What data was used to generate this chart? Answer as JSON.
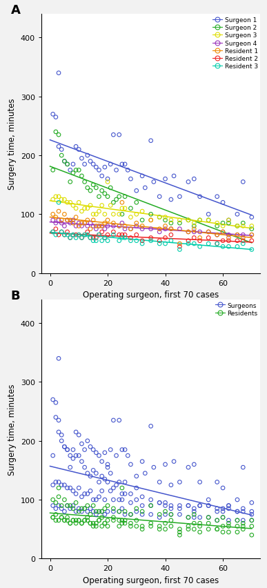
{
  "panel_A_label": "A",
  "panel_B_label": "B",
  "xlabel": "Operating surgeon, first 70 cases",
  "ylabel": "Surgery time, minutes",
  "ylim": [
    0,
    440
  ],
  "xlim": [
    -3,
    73
  ],
  "yticks": [
    0,
    100,
    200,
    300,
    400
  ],
  "xticks": [
    0,
    20,
    40,
    60
  ],
  "figsize": [
    3.87,
    8.53
  ],
  "dpi": 100,
  "bg_color": "#f2f2f2",
  "plot_bg": "#ffffff",
  "series": [
    {
      "name": "Surgeon 1",
      "color": "#4455cc",
      "x_data": [
        1,
        2,
        3,
        3,
        4,
        5,
        6,
        7,
        8,
        9,
        10,
        11,
        12,
        13,
        14,
        15,
        16,
        17,
        18,
        19,
        20,
        21,
        22,
        23,
        24,
        25,
        26,
        27,
        28,
        30,
        32,
        33,
        35,
        36,
        38,
        40,
        42,
        43,
        45,
        48,
        50,
        52,
        55,
        58,
        60,
        62,
        65,
        67,
        70
      ],
      "y_data": [
        270,
        265,
        215,
        340,
        210,
        190,
        185,
        175,
        185,
        215,
        210,
        195,
        185,
        200,
        190,
        185,
        180,
        175,
        165,
        180,
        160,
        185,
        235,
        175,
        235,
        185,
        185,
        175,
        160,
        140,
        165,
        145,
        225,
        155,
        130,
        160,
        125,
        165,
        130,
        155,
        160,
        130,
        100,
        130,
        120,
        90,
        100,
        155,
        95
      ]
    },
    {
      "name": "Surgeon 2",
      "color": "#22aa22",
      "x_data": [
        1,
        2,
        3,
        4,
        5,
        6,
        7,
        8,
        9,
        10,
        11,
        12,
        13,
        14,
        15,
        16,
        17,
        18,
        19,
        20,
        21,
        22,
        23,
        24,
        25,
        26,
        28,
        30,
        32,
        35,
        38,
        40,
        42,
        45,
        48,
        50,
        52,
        55,
        58,
        60,
        62,
        65,
        67,
        70
      ],
      "y_data": [
        175,
        240,
        235,
        200,
        190,
        185,
        155,
        170,
        175,
        175,
        165,
        155,
        145,
        140,
        150,
        145,
        130,
        140,
        135,
        130,
        145,
        120,
        125,
        130,
        100,
        130,
        110,
        120,
        90,
        100,
        95,
        90,
        85,
        85,
        90,
        80,
        90,
        90,
        80,
        85,
        85,
        80,
        85,
        75
      ]
    },
    {
      "name": "Surgeon 3",
      "color": "#dddd00",
      "x_data": [
        1,
        2,
        3,
        4,
        5,
        6,
        7,
        8,
        9,
        10,
        11,
        12,
        13,
        14,
        15,
        16,
        17,
        18,
        19,
        20,
        21,
        22,
        24,
        25,
        26,
        28,
        30,
        32,
        35,
        38,
        40,
        42,
        45,
        48,
        50,
        52,
        55,
        58,
        60,
        62,
        65,
        67,
        70
      ],
      "y_data": [
        125,
        130,
        130,
        125,
        125,
        120,
        120,
        115,
        110,
        120,
        105,
        110,
        110,
        115,
        100,
        100,
        105,
        115,
        100,
        155,
        115,
        100,
        100,
        110,
        110,
        95,
        100,
        105,
        90,
        95,
        95,
        90,
        90,
        90,
        85,
        90,
        90,
        85,
        80,
        90,
        80,
        80,
        80
      ]
    },
    {
      "name": "Surgeon 4",
      "color": "#9933bb",
      "x_data": [
        1,
        2,
        3,
        4,
        5,
        6,
        7,
        8,
        9,
        10,
        11,
        12,
        13,
        14,
        15,
        16,
        17,
        18,
        19,
        20,
        22,
        24,
        25,
        26,
        28,
        30,
        32,
        35,
        38,
        40,
        42,
        45,
        48,
        50,
        52,
        55,
        58,
        60,
        62,
        65,
        67,
        70
      ],
      "y_data": [
        90,
        85,
        90,
        85,
        80,
        90,
        85,
        90,
        80,
        85,
        80,
        85,
        80,
        85,
        80,
        75,
        80,
        80,
        75,
        80,
        80,
        80,
        85,
        75,
        75,
        80,
        75,
        75,
        70,
        75,
        75,
        75,
        70,
        70,
        70,
        70,
        65,
        70,
        65,
        65,
        65,
        65
      ]
    },
    {
      "name": "Resident 1",
      "color": "#ee8800",
      "x_data": [
        1,
        2,
        3,
        4,
        5,
        6,
        7,
        8,
        9,
        10,
        11,
        12,
        13,
        14,
        15,
        16,
        17,
        18,
        19,
        20,
        22,
        24,
        25,
        26,
        28,
        30,
        32,
        35,
        38,
        40,
        42,
        45,
        48,
        50,
        52,
        55,
        58,
        60,
        62,
        65,
        67,
        70
      ],
      "y_data": [
        100,
        95,
        105,
        90,
        100,
        90,
        90,
        85,
        95,
        80,
        85,
        85,
        90,
        75,
        90,
        80,
        80,
        80,
        85,
        90,
        85,
        80,
        120,
        80,
        75,
        85,
        80,
        90,
        75,
        80,
        75,
        50,
        70,
        75,
        60,
        70,
        65,
        70,
        60,
        65,
        60,
        65
      ]
    },
    {
      "name": "Resident 2",
      "color": "#ee2222",
      "x_data": [
        1,
        2,
        3,
        4,
        5,
        6,
        7,
        8,
        9,
        10,
        11,
        12,
        13,
        14,
        15,
        16,
        17,
        18,
        19,
        20,
        22,
        24,
        25,
        26,
        28,
        30,
        32,
        35,
        38,
        40,
        42,
        45,
        48,
        50,
        52,
        55,
        58,
        60,
        62,
        65,
        67,
        70
      ],
      "y_data": [
        70,
        75,
        65,
        70,
        65,
        70,
        60,
        65,
        65,
        65,
        60,
        65,
        70,
        60,
        60,
        60,
        65,
        70,
        60,
        65,
        70,
        65,
        65,
        65,
        60,
        65,
        55,
        60,
        55,
        60,
        65,
        45,
        55,
        60,
        55,
        60,
        50,
        55,
        55,
        55,
        55,
        55
      ]
    },
    {
      "name": "Resident 3",
      "color": "#00ccaa",
      "x_data": [
        1,
        2,
        3,
        4,
        5,
        6,
        7,
        8,
        9,
        10,
        11,
        12,
        13,
        14,
        15,
        16,
        17,
        18,
        19,
        20,
        22,
        24,
        25,
        26,
        28,
        30,
        32,
        35,
        38,
        40,
        42,
        45,
        48,
        50,
        52,
        55,
        58,
        60,
        62,
        65,
        67,
        70
      ],
      "y_data": [
        70,
        65,
        120,
        70,
        65,
        65,
        60,
        65,
        60,
        65,
        60,
        65,
        65,
        60,
        55,
        55,
        65,
        55,
        60,
        55,
        65,
        55,
        60,
        60,
        55,
        55,
        50,
        55,
        50,
        50,
        55,
        40,
        50,
        50,
        45,
        50,
        50,
        45,
        45,
        45,
        50,
        40
      ]
    }
  ],
  "group_B_surgeons_color": "#4455cc",
  "group_B_residents_color": "#22aa22"
}
